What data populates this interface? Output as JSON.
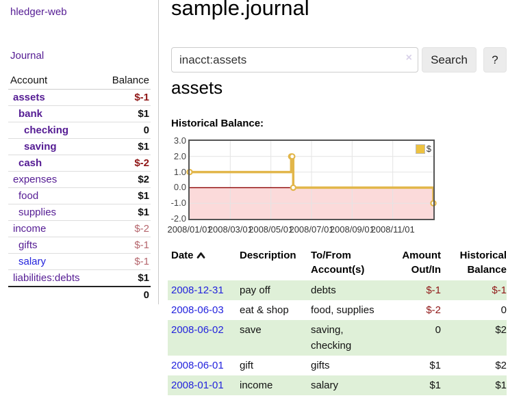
{
  "app": {
    "brand": "hledger-web",
    "nav_journal": "Journal"
  },
  "sidebar": {
    "header": {
      "account": "Account",
      "balance": "Balance"
    },
    "accounts": [
      {
        "name": "assets",
        "indent": 1,
        "bold": true,
        "balance": "$-1",
        "neg": "strong"
      },
      {
        "name": "bank",
        "indent": 2,
        "bold": true,
        "balance": "$1"
      },
      {
        "name": "checking",
        "indent": 3,
        "bold": true,
        "balance": "0"
      },
      {
        "name": "saving",
        "indent": 3,
        "bold": true,
        "balance": "$1"
      },
      {
        "name": "cash",
        "indent": 2,
        "bold": true,
        "balance": "$-2",
        "neg": "strong"
      },
      {
        "name": "expenses",
        "indent": 1,
        "bold": false,
        "balance": "$2"
      },
      {
        "name": "food",
        "indent": 2,
        "bold": false,
        "balance": "$1"
      },
      {
        "name": "supplies",
        "indent": 2,
        "bold": false,
        "balance": "$1"
      },
      {
        "name": "income",
        "indent": 1,
        "bold": false,
        "balance": "$-2",
        "neg": "soft"
      },
      {
        "name": "gifts",
        "indent": 2,
        "bold": false,
        "balance": "$-1",
        "neg": "soft"
      },
      {
        "name": "salary",
        "indent": 2,
        "bold": false,
        "balance": "$-1",
        "neg": "soft",
        "link": "blue"
      },
      {
        "name": "liabilities:debts",
        "indent": 1,
        "bold": false,
        "balance": "$1"
      }
    ],
    "total": "0"
  },
  "main": {
    "title": "sample.journal",
    "search": {
      "value": "inacct:assets",
      "clear_icon": "×",
      "button": "Search",
      "help": "?"
    },
    "account_heading": "assets",
    "chart_label": "Historical Balance:"
  },
  "chart_data": {
    "type": "line",
    "step": true,
    "title": "Historical Balance",
    "grid": true,
    "legend_position": "top-right",
    "legend": [
      {
        "label": "$",
        "color": "#edc240"
      }
    ],
    "ylim": [
      -2,
      3
    ],
    "yticks": [
      {
        "label": "3.0",
        "v": 3
      },
      {
        "label": "2.0",
        "v": 2
      },
      {
        "label": "1.0",
        "v": 1
      },
      {
        "label": "0.0",
        "v": 0
      },
      {
        "label": "-1.0",
        "v": -1
      },
      {
        "label": "-2.0",
        "v": -2
      }
    ],
    "x_start": "2008-01-01",
    "x_span_months": 12,
    "xticks": [
      {
        "label": "2008/01/01",
        "m": 0
      },
      {
        "label": "2008/03/01",
        "m": 2
      },
      {
        "label": "2008/05/01",
        "m": 4
      },
      {
        "label": "2008/07/01",
        "m": 6
      },
      {
        "label": "2008/09/01",
        "m": 8
      },
      {
        "label": "2008/11/01",
        "m": 10
      }
    ],
    "series": [
      {
        "name": "$",
        "points": [
          {
            "date": "2008-01-01",
            "m": 0,
            "value": 1
          },
          {
            "date": "2008-06-01",
            "m": 5,
            "value": 2
          },
          {
            "date": "2008-06-02",
            "m": 5.05,
            "value": 2
          },
          {
            "date": "2008-06-03",
            "m": 5.1,
            "value": 0
          },
          {
            "date": "2008-12-31",
            "m": 12,
            "value": -1
          }
        ]
      }
    ],
    "negative_region_fill": "#fbdada",
    "zero_line_color": "#8b0000"
  },
  "register": {
    "headers": {
      "date": "Date",
      "sort_icon": "chevron-up",
      "description": "Description",
      "accounts": "To/From Account(s)",
      "amount": "Amount Out/In",
      "balance": "Historical Balance"
    },
    "rows": [
      {
        "date": "2008-12-31",
        "description": "pay off",
        "accounts": "debts",
        "amount": "$-1",
        "amount_neg": true,
        "balance": "$-1",
        "balance_neg": true,
        "stripe": true
      },
      {
        "date": "2008-06-03",
        "description": "eat & shop",
        "accounts": "food, supplies",
        "amount": "$-2",
        "amount_neg": true,
        "balance": "0",
        "balance_neg": false,
        "stripe": false
      },
      {
        "date": "2008-06-02",
        "description": "save",
        "accounts": "saving,\nchecking",
        "amount": "0",
        "amount_neg": false,
        "balance": "$2",
        "balance_neg": false,
        "stripe": true
      },
      {
        "date": "2008-06-01",
        "description": "gift",
        "accounts": "gifts",
        "amount": "$1",
        "amount_neg": false,
        "balance": "$2",
        "balance_neg": false,
        "stripe": false
      },
      {
        "date": "2008-01-01",
        "description": "income",
        "accounts": "salary",
        "amount": "$1",
        "amount_neg": false,
        "balance": "$1",
        "balance_neg": false,
        "stripe": true
      }
    ]
  },
  "colors": {
    "link_purple": "#541b93",
    "link_blue": "#2323dd",
    "negative_strong": "#8f1616",
    "negative_soft": "#b5666d",
    "row_stripe_green": "#dff0d8",
    "series_gold": "#e2b64a",
    "legend_swatch": "#edc240",
    "negative_region_pink": "#fbdada",
    "zero_line_red": "#8b0000",
    "gridline": "#e4e4e4",
    "chart_border": "#545454",
    "button_bg": "#ececec",
    "divider": "#c9c9c9",
    "clear_icon": "#d9d2e9"
  }
}
